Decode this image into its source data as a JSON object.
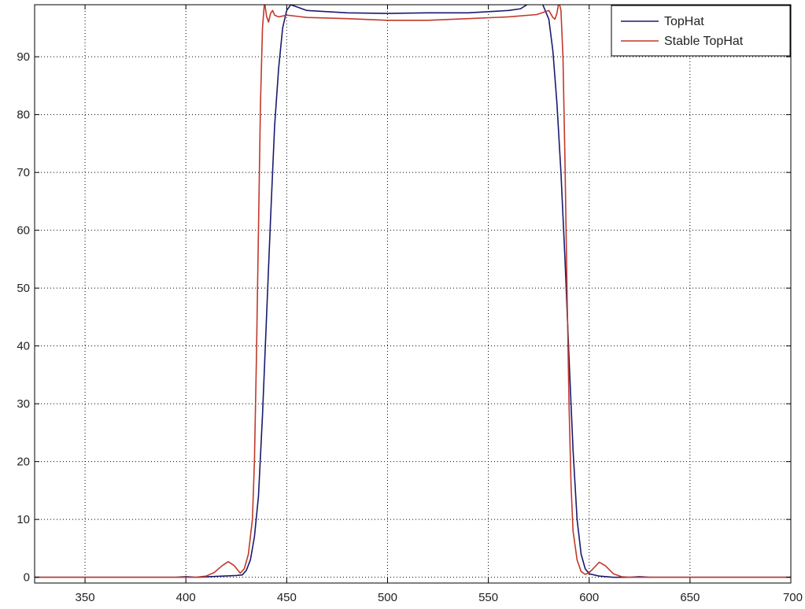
{
  "chart_data": {
    "type": "line",
    "title": "",
    "xlabel": "",
    "ylabel": "",
    "xlim": [
      325,
      700
    ],
    "ylim": [
      -1,
      99
    ],
    "xticks": [
      350,
      400,
      450,
      500,
      550,
      600,
      650,
      700
    ],
    "yticks": [
      0,
      10,
      20,
      30,
      40,
      50,
      60,
      70,
      80,
      90
    ],
    "grid": true,
    "legend_position": "top-right",
    "series": [
      {
        "name": "TopHat",
        "color": "#1a1a6e",
        "points": [
          [
            325,
            0
          ],
          [
            395,
            0
          ],
          [
            400,
            0.1
          ],
          [
            405,
            0
          ],
          [
            425,
            0.3
          ],
          [
            428,
            0.4
          ],
          [
            430,
            1.2
          ],
          [
            432,
            3
          ],
          [
            434,
            7
          ],
          [
            436,
            14
          ],
          [
            438,
            28
          ],
          [
            440,
            45
          ],
          [
            442,
            62
          ],
          [
            444,
            78
          ],
          [
            446,
            88
          ],
          [
            448,
            95
          ],
          [
            450,
            98
          ],
          [
            452,
            99
          ],
          [
            456,
            98.5
          ],
          [
            460,
            98
          ],
          [
            480,
            97.6
          ],
          [
            500,
            97.5
          ],
          [
            520,
            97.6
          ],
          [
            540,
            97.6
          ],
          [
            560,
            98
          ],
          [
            566,
            98.3
          ],
          [
            570,
            99.2
          ],
          [
            574,
            99.8
          ],
          [
            577,
            99
          ],
          [
            580,
            96.5
          ],
          [
            582,
            91
          ],
          [
            584,
            82
          ],
          [
            586,
            70
          ],
          [
            588,
            55
          ],
          [
            590,
            38
          ],
          [
            592,
            22
          ],
          [
            594,
            10
          ],
          [
            596,
            4
          ],
          [
            598,
            1.5
          ],
          [
            600,
            0.6
          ],
          [
            605,
            0.2
          ],
          [
            612,
            0
          ],
          [
            620,
            0
          ],
          [
            625,
            0.1
          ],
          [
            630,
            0
          ],
          [
            700,
            0
          ]
        ]
      },
      {
        "name": "Stable TopHat",
        "color": "#c0392b",
        "points": [
          [
            325,
            0
          ],
          [
            405,
            0
          ],
          [
            410,
            0.2
          ],
          [
            414,
            0.8
          ],
          [
            418,
            2
          ],
          [
            421,
            2.7
          ],
          [
            424,
            2
          ],
          [
            427,
            0.7
          ],
          [
            429,
            1.5
          ],
          [
            431,
            4
          ],
          [
            433,
            10
          ],
          [
            434,
            20
          ],
          [
            435,
            38
          ],
          [
            436,
            60
          ],
          [
            437,
            82
          ],
          [
            438,
            95
          ],
          [
            439,
            99.5
          ],
          [
            440,
            97
          ],
          [
            441,
            96
          ],
          [
            442,
            97.5
          ],
          [
            443,
            98
          ],
          [
            444,
            97.2
          ],
          [
            446,
            96.9
          ],
          [
            450,
            97.2
          ],
          [
            460,
            96.8
          ],
          [
            480,
            96.6
          ],
          [
            500,
            96.3
          ],
          [
            520,
            96.3
          ],
          [
            540,
            96.6
          ],
          [
            560,
            96.9
          ],
          [
            574,
            97.3
          ],
          [
            580,
            98
          ],
          [
            582,
            96.8
          ],
          [
            583,
            96.5
          ],
          [
            584,
            97.5
          ],
          [
            585,
            99.5
          ],
          [
            586,
            98
          ],
          [
            587,
            90
          ],
          [
            588,
            72
          ],
          [
            589,
            50
          ],
          [
            590,
            30
          ],
          [
            591,
            16
          ],
          [
            592,
            8
          ],
          [
            594,
            3
          ],
          [
            596,
            1
          ],
          [
            598,
            0.5
          ],
          [
            600,
            0.8
          ],
          [
            602,
            1.5
          ],
          [
            605,
            2.6
          ],
          [
            608,
            2
          ],
          [
            612,
            0.6
          ],
          [
            616,
            0.1
          ],
          [
            620,
            0
          ],
          [
            700,
            0
          ]
        ]
      }
    ]
  }
}
